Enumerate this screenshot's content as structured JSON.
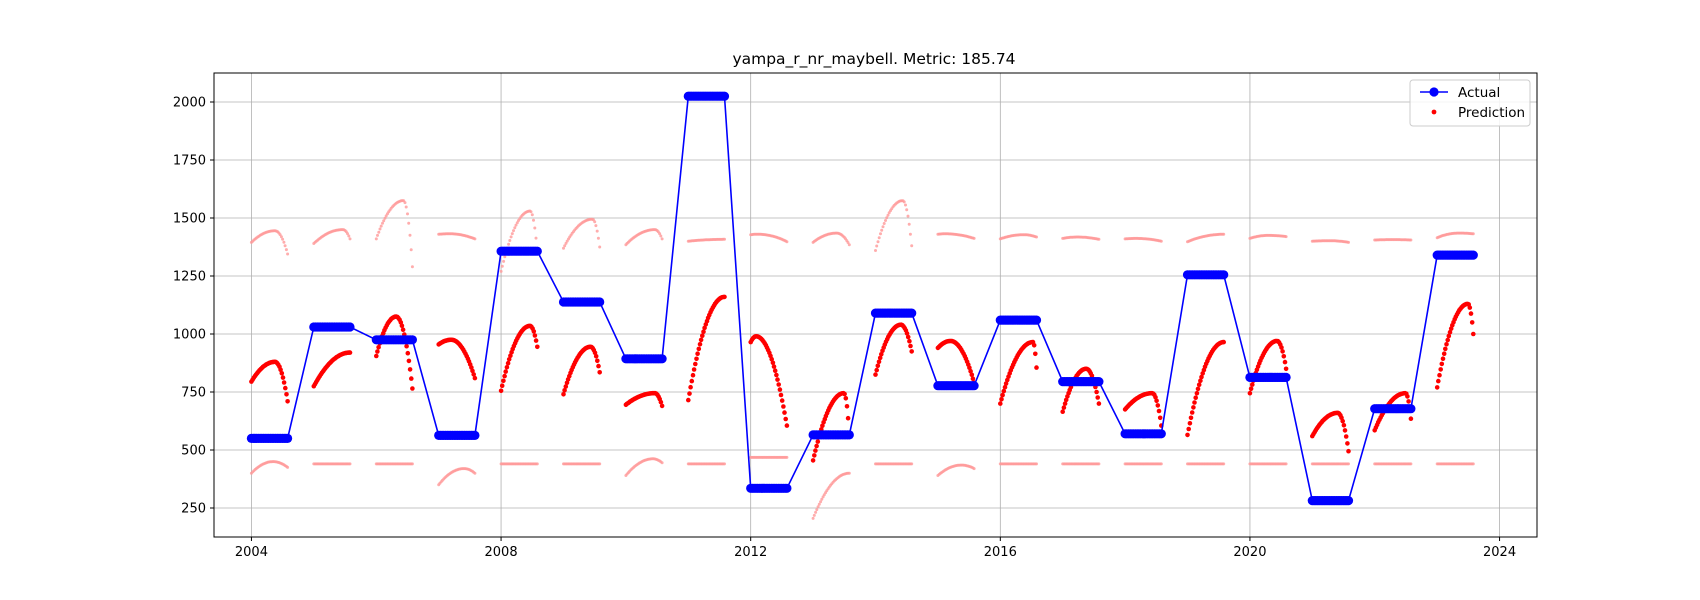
{
  "chart_data": {
    "type": "line",
    "title": "yampa_r_nr_maybell. Metric: 185.74",
    "xlabel": "",
    "ylabel": "",
    "xlim": [
      2003.4,
      2024.6
    ],
    "ylim": [
      125,
      2125
    ],
    "x_ticks": [
      "2004",
      "2008",
      "2012",
      "2016",
      "2020",
      "2024"
    ],
    "x_tick_values": [
      2004,
      2008,
      2012,
      2016,
      2020,
      2024
    ],
    "y_ticks": [
      "250",
      "500",
      "750",
      "1000",
      "1250",
      "1500",
      "1750",
      "2000"
    ],
    "y_tick_values": [
      250,
      500,
      750,
      1000,
      1250,
      1500,
      1750,
      2000
    ],
    "grid": true,
    "legend": {
      "placement": "top-right",
      "entries": [
        "Actual",
        "Prediction"
      ]
    },
    "colors": {
      "actual": "#0000ff",
      "prediction": "#ff0000",
      "prediction_faint": "#ff9999"
    },
    "series": [
      {
        "name": "Actual",
        "kind": "line-markers",
        "segments": [
          {
            "start": 2004.0,
            "end": 2004.58,
            "value": 550
          },
          {
            "start": 2005.0,
            "end": 2005.58,
            "value": 1030
          },
          {
            "start": 2006.0,
            "end": 2006.58,
            "value": 975
          },
          {
            "start": 2007.0,
            "end": 2007.58,
            "value": 563
          },
          {
            "start": 2008.0,
            "end": 2008.58,
            "value": 1357
          },
          {
            "start": 2009.0,
            "end": 2009.58,
            "value": 1138
          },
          {
            "start": 2010.0,
            "end": 2010.58,
            "value": 893
          },
          {
            "start": 2011.0,
            "end": 2011.58,
            "value": 2025
          },
          {
            "start": 2012.0,
            "end": 2012.58,
            "value": 335
          },
          {
            "start": 2013.0,
            "end": 2013.58,
            "value": 565
          },
          {
            "start": 2014.0,
            "end": 2014.58,
            "value": 1090
          },
          {
            "start": 2015.0,
            "end": 2015.58,
            "value": 777
          },
          {
            "start": 2016.0,
            "end": 2016.58,
            "value": 1060
          },
          {
            "start": 2017.0,
            "end": 2017.58,
            "value": 795
          },
          {
            "start": 2018.0,
            "end": 2018.58,
            "value": 570
          },
          {
            "start": 2019.0,
            "end": 2019.58,
            "value": 1255
          },
          {
            "start": 2020.0,
            "end": 2020.58,
            "value": 813
          },
          {
            "start": 2021.0,
            "end": 2021.58,
            "value": 282
          },
          {
            "start": 2022.0,
            "end": 2022.58,
            "value": 678
          },
          {
            "start": 2023.0,
            "end": 2023.58,
            "value": 1340
          }
        ]
      },
      {
        "name": "Prediction",
        "kind": "scatter",
        "arcs": [
          {
            "start": 2004.0,
            "end": 2004.58,
            "v0": 795,
            "peak": 880,
            "peak_frac": 0.65,
            "v1": 710
          },
          {
            "start": 2005.0,
            "end": 2005.58,
            "v0": 775,
            "peak": 920,
            "peak_frac": 1.0,
            "v1": 915
          },
          {
            "start": 2006.0,
            "end": 2006.58,
            "v0": 905,
            "peak": 1075,
            "peak_frac": 0.55,
            "v1": 765
          },
          {
            "start": 2007.0,
            "end": 2007.58,
            "v0": 955,
            "peak": 975,
            "peak_frac": 0.35,
            "v1": 810
          },
          {
            "start": 2008.0,
            "end": 2008.58,
            "v0": 755,
            "peak": 1035,
            "peak_frac": 0.8,
            "v1": 945
          },
          {
            "start": 2009.0,
            "end": 2009.58,
            "v0": 740,
            "peak": 945,
            "peak_frac": 0.75,
            "v1": 835
          },
          {
            "start": 2010.0,
            "end": 2010.58,
            "v0": 695,
            "peak": 745,
            "peak_frac": 0.8,
            "v1": 690
          },
          {
            "start": 2011.0,
            "end": 2011.58,
            "v0": 715,
            "peak": 1160,
            "peak_frac": 1.0,
            "v1": 1160
          },
          {
            "start": 2012.0,
            "end": 2012.58,
            "v0": 965,
            "peak": 990,
            "peak_frac": 0.15,
            "v1": 605
          },
          {
            "start": 2013.0,
            "end": 2013.58,
            "v0": 455,
            "peak": 745,
            "peak_frac": 0.85,
            "v1": 570
          },
          {
            "start": 2014.0,
            "end": 2014.58,
            "v0": 825,
            "peak": 1040,
            "peak_frac": 0.7,
            "v1": 925
          },
          {
            "start": 2015.0,
            "end": 2015.58,
            "v0": 940,
            "peak": 970,
            "peak_frac": 0.35,
            "v1": 790
          },
          {
            "start": 2016.0,
            "end": 2016.58,
            "v0": 700,
            "peak": 965,
            "peak_frac": 0.9,
            "v1": 855
          },
          {
            "start": 2017.0,
            "end": 2017.58,
            "v0": 665,
            "peak": 850,
            "peak_frac": 0.65,
            "v1": 700
          },
          {
            "start": 2018.0,
            "end": 2018.58,
            "v0": 675,
            "peak": 745,
            "peak_frac": 0.75,
            "v1": 605
          },
          {
            "start": 2019.0,
            "end": 2019.58,
            "v0": 565,
            "peak": 965,
            "peak_frac": 1.0,
            "v1": 955
          },
          {
            "start": 2020.0,
            "end": 2020.58,
            "v0": 745,
            "peak": 970,
            "peak_frac": 0.75,
            "v1": 850
          },
          {
            "start": 2021.0,
            "end": 2021.58,
            "v0": 560,
            "peak": 660,
            "peak_frac": 0.7,
            "v1": 495
          },
          {
            "start": 2022.0,
            "end": 2022.58,
            "v0": 585,
            "peak": 745,
            "peak_frac": 0.85,
            "v1": 635
          },
          {
            "start": 2023.0,
            "end": 2023.58,
            "v0": 770,
            "peak": 1130,
            "peak_frac": 0.85,
            "v1": 1000
          }
        ],
        "faint_upper_arcs": [
          {
            "start": 2004.0,
            "end": 2004.58,
            "v0": 1395,
            "peak": 1445,
            "peak_frac": 0.65,
            "v1": 1345
          },
          {
            "start": 2005.0,
            "end": 2005.58,
            "v0": 1390,
            "peak": 1450,
            "peak_frac": 0.8,
            "v1": 1410
          },
          {
            "start": 2006.0,
            "end": 2006.58,
            "v0": 1410,
            "peak": 1575,
            "peak_frac": 0.75,
            "v1": 1290
          },
          {
            "start": 2007.0,
            "end": 2007.58,
            "v0": 1430,
            "peak": 1432,
            "peak_frac": 0.3,
            "v1": 1410
          },
          {
            "start": 2008.0,
            "end": 2008.58,
            "v0": 1270,
            "peak": 1530,
            "peak_frac": 0.8,
            "v1": 1360
          },
          {
            "start": 2009.0,
            "end": 2009.58,
            "v0": 1370,
            "peak": 1495,
            "peak_frac": 0.8,
            "v1": 1375
          },
          {
            "start": 2010.0,
            "end": 2010.58,
            "v0": 1385,
            "peak": 1450,
            "peak_frac": 0.8,
            "v1": 1410
          },
          {
            "start": 2011.0,
            "end": 2011.58,
            "v0": 1400,
            "peak": 1408,
            "peak_frac": 1.0,
            "v1": 1408
          },
          {
            "start": 2012.0,
            "end": 2012.58,
            "v0": 1428,
            "peak": 1430,
            "peak_frac": 0.2,
            "v1": 1398
          },
          {
            "start": 2013.0,
            "end": 2013.58,
            "v0": 1395,
            "peak": 1435,
            "peak_frac": 0.65,
            "v1": 1385
          },
          {
            "start": 2014.0,
            "end": 2014.58,
            "v0": 1360,
            "peak": 1575,
            "peak_frac": 0.75,
            "v1": 1380
          },
          {
            "start": 2015.0,
            "end": 2015.58,
            "v0": 1430,
            "peak": 1432,
            "peak_frac": 0.2,
            "v1": 1412
          },
          {
            "start": 2016.0,
            "end": 2016.58,
            "v0": 1410,
            "peak": 1428,
            "peak_frac": 0.65,
            "v1": 1418
          },
          {
            "start": 2017.0,
            "end": 2017.58,
            "v0": 1412,
            "peak": 1418,
            "peak_frac": 0.4,
            "v1": 1408
          },
          {
            "start": 2018.0,
            "end": 2018.58,
            "v0": 1410,
            "peak": 1412,
            "peak_frac": 0.3,
            "v1": 1400
          },
          {
            "start": 2019.0,
            "end": 2019.58,
            "v0": 1398,
            "peak": 1430,
            "peak_frac": 1.0,
            "v1": 1430
          },
          {
            "start": 2020.0,
            "end": 2020.58,
            "v0": 1412,
            "peak": 1425,
            "peak_frac": 0.5,
            "v1": 1420
          },
          {
            "start": 2021.0,
            "end": 2021.58,
            "v0": 1400,
            "peak": 1402,
            "peak_frac": 0.5,
            "v1": 1395
          },
          {
            "start": 2022.0,
            "end": 2022.58,
            "v0": 1405,
            "peak": 1407,
            "peak_frac": 0.5,
            "v1": 1405
          },
          {
            "start": 2023.0,
            "end": 2023.58,
            "v0": 1415,
            "peak": 1435,
            "peak_frac": 0.6,
            "v1": 1432
          }
        ],
        "faint_lower_arcs": [
          {
            "start": 2004.0,
            "end": 2004.58,
            "v0": 400,
            "peak": 450,
            "peak_frac": 0.6,
            "v1": 425
          },
          {
            "start": 2005.0,
            "end": 2005.58,
            "v0": 440,
            "peak": 440,
            "peak_frac": 0.5,
            "v1": 440
          },
          {
            "start": 2006.0,
            "end": 2006.58,
            "v0": 440,
            "peak": 440,
            "peak_frac": 0.5,
            "v1": 440
          },
          {
            "start": 2007.0,
            "end": 2007.58,
            "v0": 350,
            "peak": 420,
            "peak_frac": 0.7,
            "v1": 400
          },
          {
            "start": 2008.0,
            "end": 2008.58,
            "v0": 440,
            "peak": 440,
            "peak_frac": 0.5,
            "v1": 440
          },
          {
            "start": 2009.0,
            "end": 2009.58,
            "v0": 440,
            "peak": 440,
            "peak_frac": 0.5,
            "v1": 440
          },
          {
            "start": 2010.0,
            "end": 2010.58,
            "v0": 390,
            "peak": 462,
            "peak_frac": 0.75,
            "v1": 445
          },
          {
            "start": 2011.0,
            "end": 2011.58,
            "v0": 440,
            "peak": 440,
            "peak_frac": 0.5,
            "v1": 440
          },
          {
            "start": 2012.0,
            "end": 2012.58,
            "v0": 468,
            "peak": 468,
            "peak_frac": 0.5,
            "v1": 468
          },
          {
            "start": 2015.0,
            "end": 2015.58,
            "v0": 390,
            "peak": 435,
            "peak_frac": 0.65,
            "v1": 420
          },
          {
            "start": 2014.0,
            "end": 2014.58,
            "v0": 440,
            "peak": 440,
            "peak_frac": 0.5,
            "v1": 440
          },
          {
            "start": 2016.0,
            "end": 2016.58,
            "v0": 440,
            "peak": 440,
            "peak_frac": 0.5,
            "v1": 440
          },
          {
            "start": 2017.0,
            "end": 2017.58,
            "v0": 440,
            "peak": 440,
            "peak_frac": 0.5,
            "v1": 440
          },
          {
            "start": 2018.0,
            "end": 2018.58,
            "v0": 440,
            "peak": 440,
            "peak_frac": 0.5,
            "v1": 440
          },
          {
            "start": 2019.0,
            "end": 2019.58,
            "v0": 440,
            "peak": 440,
            "peak_frac": 0.5,
            "v1": 440
          },
          {
            "start": 2020.0,
            "end": 2020.58,
            "v0": 440,
            "peak": 440,
            "peak_frac": 0.5,
            "v1": 440
          },
          {
            "start": 2021.0,
            "end": 2021.58,
            "v0": 440,
            "peak": 440,
            "peak_frac": 0.5,
            "v1": 440
          },
          {
            "start": 2022.0,
            "end": 2022.58,
            "v0": 440,
            "peak": 440,
            "peak_frac": 0.5,
            "v1": 440
          },
          {
            "start": 2023.0,
            "end": 2023.58,
            "v0": 440,
            "peak": 440,
            "peak_frac": 0.5,
            "v1": 440
          },
          {
            "start": 2013.0,
            "end": 2013.58,
            "v0": 205,
            "peak": 400,
            "peak_frac": 1.0,
            "v1": 400
          }
        ]
      }
    ]
  }
}
